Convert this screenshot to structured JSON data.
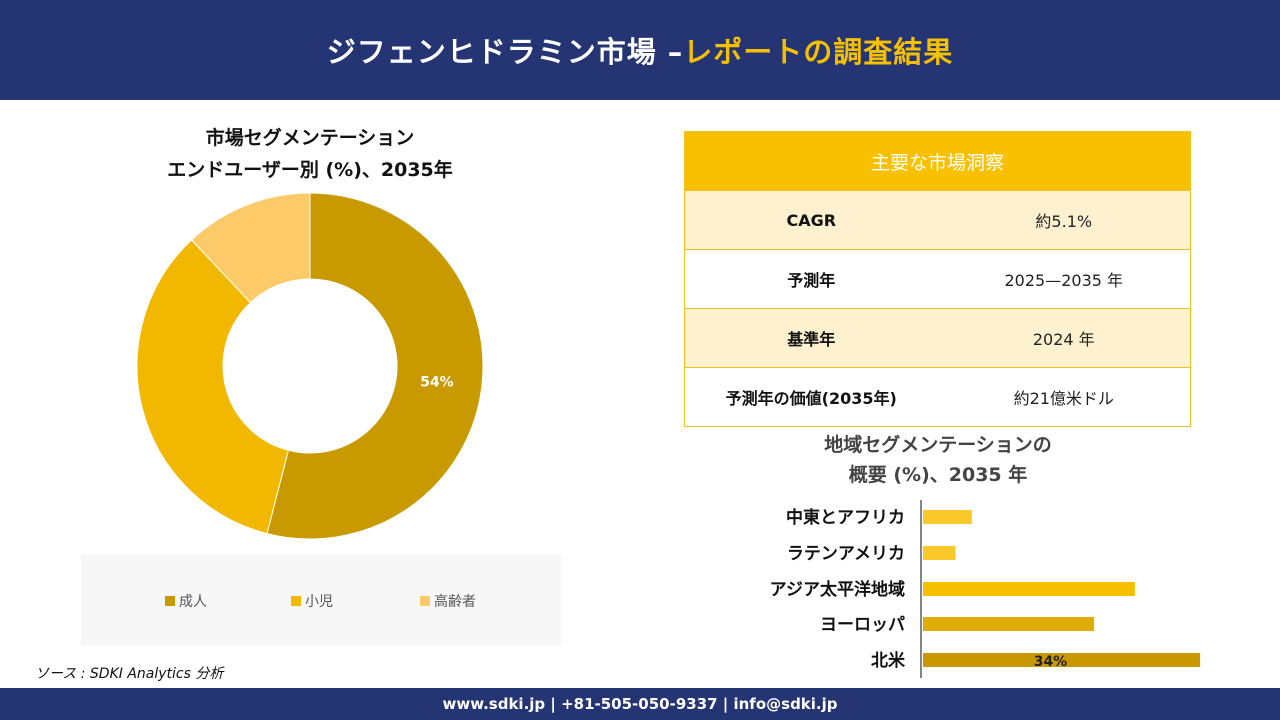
{
  "header": {
    "title_main": "ジフェンヒドラミン市場 –",
    "title_accent": "レポートの調査結果"
  },
  "donut": {
    "title_line1": "市場セグメンテーション",
    "title_line2": "エンドユーザー別 (%)、2035年"
  },
  "insights": {
    "heading": "主要な市場洞察",
    "rows": [
      {
        "label": "CAGR",
        "value": "約5.1%"
      },
      {
        "label": "予測年",
        "value": "2025—2035 年"
      },
      {
        "label": "基準年",
        "value": "2024 年"
      },
      {
        "label": "予測年の価値(2035年)",
        "value": "約21億米ドル"
      }
    ]
  },
  "bars": {
    "title_line1": "地域セグメンテーションの",
    "title_line2": "概要 (%)、2035 年"
  },
  "source": "ソース : SDKI Analytics 分析",
  "footer": {
    "contact": "www.sdki.jp | +81-505-050-9337 | info@sdki.jp"
  },
  "colors": {
    "header_bg": "#253472",
    "accent": "#f5c000"
  },
  "chart_data": [
    {
      "type": "pie",
      "donut": true,
      "categories": [
        "成人",
        "小児",
        "高齢者"
      ],
      "values": [
        54,
        34,
        12
      ],
      "data_labels": [
        "54%",
        "",
        ""
      ],
      "colors": [
        "#c89a00",
        "#f2b800",
        "#fdca6a"
      ],
      "legend": "bottom"
    },
    {
      "type": "bar",
      "orientation": "horizontal",
      "categories": [
        "中東とアフリカ",
        "ラテンアメリカ",
        "アジア太平洋地域",
        "ヨーロッパ",
        "北米"
      ],
      "values": [
        6,
        4,
        26,
        21,
        34
      ],
      "data_labels": [
        "",
        "",
        "",
        "",
        "34%"
      ],
      "colors": [
        "#f9c92b",
        "#f9c92b",
        "#f6c000",
        "#e0ac00",
        "#c99700"
      ]
    }
  ]
}
